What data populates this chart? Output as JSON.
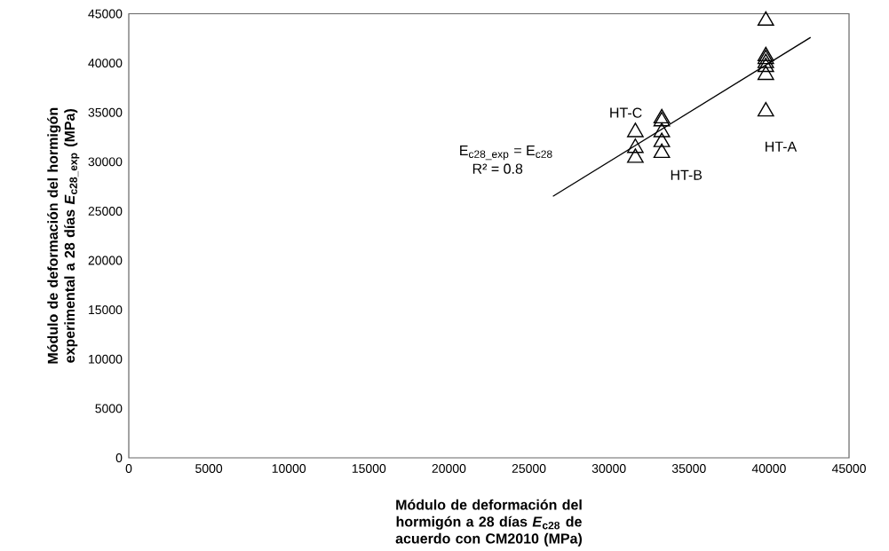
{
  "chart_data": {
    "type": "scatter",
    "xlabel": "Módulo de deformación del hormigón a 28 días *E*$_{c28}$ de acuerdo con CM2010 (MPa)",
    "ylabel": "Módulo de deformación del hormigón experimental a 28 días *E*$_{c28_exp}$ (MPa)",
    "series": [
      {
        "color": "#000000",
        "x": [
          39800,
          39800,
          39800,
          39800,
          39800,
          39800,
          39800
        ],
        "values": [
          44300,
          40700,
          40400,
          40000,
          39600,
          38800,
          35100
        ]
      },
      {
        "color": "#000000",
        "x": [
          33300,
          33300,
          33300,
          33300,
          33300
        ],
        "values": [
          34400,
          34100,
          33000,
          32000,
          30900
        ]
      },
      {
        "color": "#000000",
        "x": [
          31650,
          31650,
          31650
        ],
        "values": [
          33000,
          31400,
          30400
        ]
      },
      {
        "type": "line",
        "color": "#000000",
        "marker": "none",
        "x": [
          26500,
          42600
        ],
        "values": [
          26500,
          42600
        ]
      }
    ],
    "annotations": [
      "HT-A",
      "HT-B",
      "HT-C",
      "E$_{c28_exp}$ = E$_{c28}$",
      "R² = 0.8"
    ],
    "marker": "triangle",
    "xlim": [
      0,
      45000
    ],
    "ylim": [
      0,
      45000
    ],
    "xticks": [
      0,
      5000,
      10000,
      15000,
      20000,
      25000,
      30000,
      35000,
      40000,
      45000
    ],
    "yticks": [
      0,
      5000,
      10000,
      15000,
      20000,
      25000,
      30000,
      35000,
      40000,
      45000
    ],
    "grid": false
  }
}
